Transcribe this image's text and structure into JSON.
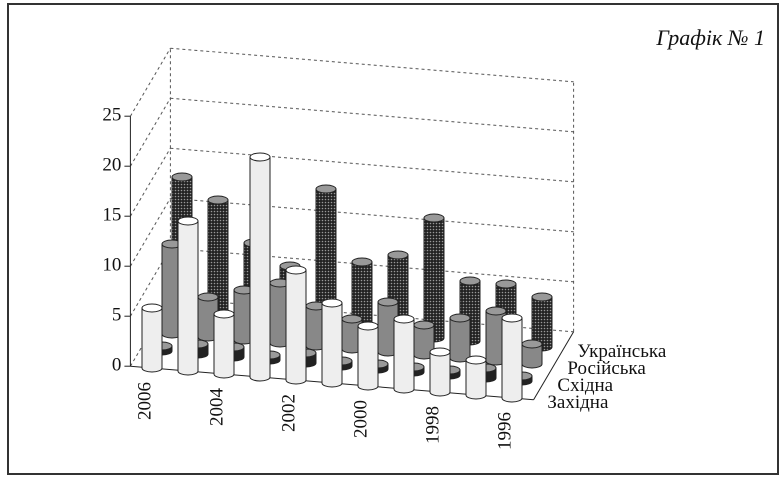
{
  "chart_data": {
    "type": "bar3d",
    "title": "Графік № 1",
    "categories": [
      "2006",
      null,
      "2004",
      null,
      "2002",
      null,
      "2000",
      null,
      "1998",
      null,
      "1996"
    ],
    "series": [
      {
        "name": "Західна",
        "color": "#eeeeee",
        "values": [
          6,
          15,
          6,
          22,
          11,
          8,
          6,
          7,
          4,
          3.5,
          8
        ]
      },
      {
        "name": "Східна",
        "color": "#222222",
        "values": [
          0.5,
          1,
          1,
          0.5,
          1,
          0.5,
          0.5,
          0.5,
          0.5,
          1,
          0.5
        ]
      },
      {
        "name": "Російська",
        "color": "#888888",
        "values": [
          9,
          4,
          5,
          6,
          4,
          3,
          5,
          3,
          4,
          5,
          2
        ]
      },
      {
        "name": "Українська",
        "color": "#333333",
        "values": [
          14,
          12,
          8,
          6,
          14,
          7,
          8,
          12,
          6,
          6,
          5
        ]
      }
    ],
    "ylim": [
      0,
      25
    ],
    "yticks": [
      0,
      5,
      10,
      15,
      20,
      25
    ],
    "grid": true
  }
}
